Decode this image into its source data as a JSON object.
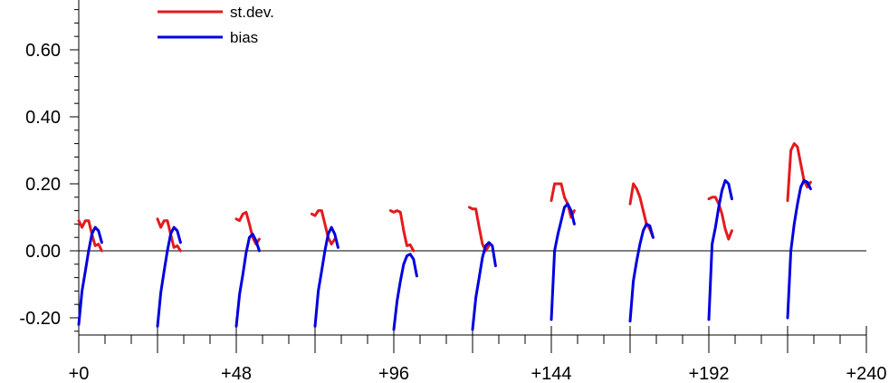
{
  "chart_data": {
    "type": "line",
    "title": "",
    "xlabel": "",
    "ylabel": "",
    "xlim": [
      0,
      240
    ],
    "ylim": [
      -0.26,
      0.75
    ],
    "x_ticks": [
      {
        "value": 0,
        "label": "+0"
      },
      {
        "value": 48,
        "label": "+48"
      },
      {
        "value": 96,
        "label": "+96"
      },
      {
        "value": 144,
        "label": "+144"
      },
      {
        "value": 192,
        "label": "+192"
      },
      {
        "value": 240,
        "label": "+240"
      }
    ],
    "y_ticks": [
      {
        "value": -0.2,
        "label": "-0.20"
      },
      {
        "value": 0,
        "label": "0.00"
      },
      {
        "value": 0.2,
        "label": "0.20"
      },
      {
        "value": 0.4,
        "label": "0.40"
      },
      {
        "value": 0.6,
        "label": "0.60"
      }
    ],
    "zero_line": true,
    "grid": false,
    "legend": {
      "position": "top-left"
    },
    "series": [
      {
        "name": "st.dev.",
        "color": "#e41a1c",
        "segments": [
          [
            [
              0,
              0.09
            ],
            [
              1,
              0.07
            ],
            [
              2,
              0.09
            ],
            [
              3,
              0.09
            ],
            [
              4,
              0.05
            ],
            [
              5,
              0.015
            ],
            [
              6,
              0.02
            ],
            [
              7,
              0.0
            ]
          ],
          [
            [
              24,
              0.095
            ],
            [
              25,
              0.07
            ],
            [
              26,
              0.09
            ],
            [
              27,
              0.09
            ],
            [
              28,
              0.05
            ],
            [
              29,
              0.01
            ],
            [
              30,
              0.015
            ],
            [
              31,
              0.0
            ]
          ],
          [
            [
              48,
              0.095
            ],
            [
              49,
              0.09
            ],
            [
              50,
              0.11
            ],
            [
              51,
              0.115
            ],
            [
              52,
              0.08
            ],
            [
              53,
              0.04
            ],
            [
              54,
              0.02
            ],
            [
              55,
              0.035
            ]
          ],
          [
            [
              71,
              0.11
            ],
            [
              72,
              0.105
            ],
            [
              73,
              0.12
            ],
            [
              74,
              0.12
            ],
            [
              75,
              0.08
            ],
            [
              76,
              0.04
            ],
            [
              77,
              0.02
            ],
            [
              78,
              0.035
            ]
          ],
          [
            [
              95,
              0.12
            ],
            [
              96,
              0.115
            ],
            [
              97,
              0.12
            ],
            [
              98,
              0.115
            ],
            [
              99,
              0.06
            ],
            [
              100,
              0.015
            ],
            [
              101,
              0.018
            ],
            [
              102,
              0.0
            ]
          ],
          [
            [
              119,
              0.13
            ],
            [
              120,
              0.125
            ],
            [
              121,
              0.125
            ],
            [
              122,
              0.07
            ],
            [
              123,
              0.02
            ],
            [
              124,
              0.0
            ],
            [
              125,
              0.015
            ]
          ],
          [
            [
              144,
              0.15
            ],
            [
              145,
              0.2
            ],
            [
              146,
              0.2
            ],
            [
              147,
              0.2
            ],
            [
              148,
              0.16
            ],
            [
              149,
              0.14
            ],
            [
              150,
              0.1
            ],
            [
              151,
              0.12
            ]
          ],
          [
            [
              168,
              0.14
            ],
            [
              169,
              0.2
            ],
            [
              170,
              0.185
            ],
            [
              171,
              0.16
            ],
            [
              172,
              0.12
            ],
            [
              173,
              0.08
            ],
            [
              174,
              0.065
            ],
            [
              175,
              0.04
            ]
          ],
          [
            [
              192,
              0.155
            ],
            [
              193,
              0.16
            ],
            [
              194,
              0.16
            ],
            [
              195,
              0.14
            ],
            [
              196,
              0.11
            ],
            [
              197,
              0.065
            ],
            [
              198,
              0.035
            ],
            [
              199,
              0.06
            ]
          ],
          [
            [
              216,
              0.15
            ],
            [
              217,
              0.3
            ],
            [
              218,
              0.32
            ],
            [
              219,
              0.31
            ],
            [
              220,
              0.26
            ],
            [
              221,
              0.21
            ],
            [
              222,
              0.19
            ],
            [
              223,
              0.205
            ]
          ]
        ]
      },
      {
        "name": "bias",
        "color": "#0000e0",
        "segments": [
          [
            [
              0,
              -0.22
            ],
            [
              1,
              -0.12
            ],
            [
              2,
              -0.06
            ],
            [
              3,
              0.0
            ],
            [
              4,
              0.05
            ],
            [
              5,
              0.07
            ],
            [
              6,
              0.06
            ],
            [
              7,
              0.025
            ]
          ],
          [
            [
              24,
              -0.225
            ],
            [
              25,
              -0.125
            ],
            [
              26,
              -0.06
            ],
            [
              27,
              0.0
            ],
            [
              28,
              0.05
            ],
            [
              29,
              0.07
            ],
            [
              30,
              0.06
            ],
            [
              31,
              0.025
            ]
          ],
          [
            [
              48,
              -0.225
            ],
            [
              49,
              -0.13
            ],
            [
              50,
              -0.07
            ],
            [
              51,
              -0.005
            ],
            [
              52,
              0.04
            ],
            [
              53,
              0.05
            ],
            [
              54,
              0.03
            ],
            [
              55,
              0.0
            ]
          ],
          [
            [
              72,
              -0.225
            ],
            [
              73,
              -0.12
            ],
            [
              74,
              -0.06
            ],
            [
              75,
              0.0
            ],
            [
              76,
              0.05
            ],
            [
              77,
              0.07
            ],
            [
              78,
              0.05
            ],
            [
              79,
              0.01
            ]
          ],
          [
            [
              96,
              -0.235
            ],
            [
              97,
              -0.15
            ],
            [
              98,
              -0.09
            ],
            [
              99,
              -0.04
            ],
            [
              100,
              -0.015
            ],
            [
              101,
              -0.01
            ],
            [
              102,
              -0.025
            ],
            [
              103,
              -0.075
            ]
          ],
          [
            [
              120,
              -0.235
            ],
            [
              121,
              -0.14
            ],
            [
              122,
              -0.08
            ],
            [
              123,
              -0.02
            ],
            [
              124,
              0.015
            ],
            [
              125,
              0.025
            ],
            [
              126,
              0.015
            ],
            [
              127,
              -0.045
            ]
          ],
          [
            [
              144,
              -0.205
            ],
            [
              145,
              0.0
            ],
            [
              146,
              0.05
            ],
            [
              147,
              0.09
            ],
            [
              148,
              0.13
            ],
            [
              149,
              0.14
            ],
            [
              150,
              0.12
            ],
            [
              151,
              0.08
            ]
          ],
          [
            [
              168,
              -0.21
            ],
            [
              169,
              -0.09
            ],
            [
              170,
              -0.03
            ],
            [
              171,
              0.02
            ],
            [
              172,
              0.06
            ],
            [
              173,
              0.08
            ],
            [
              174,
              0.075
            ],
            [
              175,
              0.04
            ]
          ],
          [
            [
              192,
              -0.205
            ],
            [
              193,
              0.02
            ],
            [
              194,
              0.07
            ],
            [
              195,
              0.13
            ],
            [
              196,
              0.18
            ],
            [
              197,
              0.21
            ],
            [
              198,
              0.2
            ],
            [
              199,
              0.155
            ]
          ],
          [
            [
              216,
              -0.2
            ],
            [
              217,
              0.0
            ],
            [
              218,
              0.08
            ],
            [
              219,
              0.14
            ],
            [
              220,
              0.19
            ],
            [
              221,
              0.21
            ],
            [
              222,
              0.205
            ],
            [
              223,
              0.185
            ]
          ]
        ]
      }
    ]
  }
}
